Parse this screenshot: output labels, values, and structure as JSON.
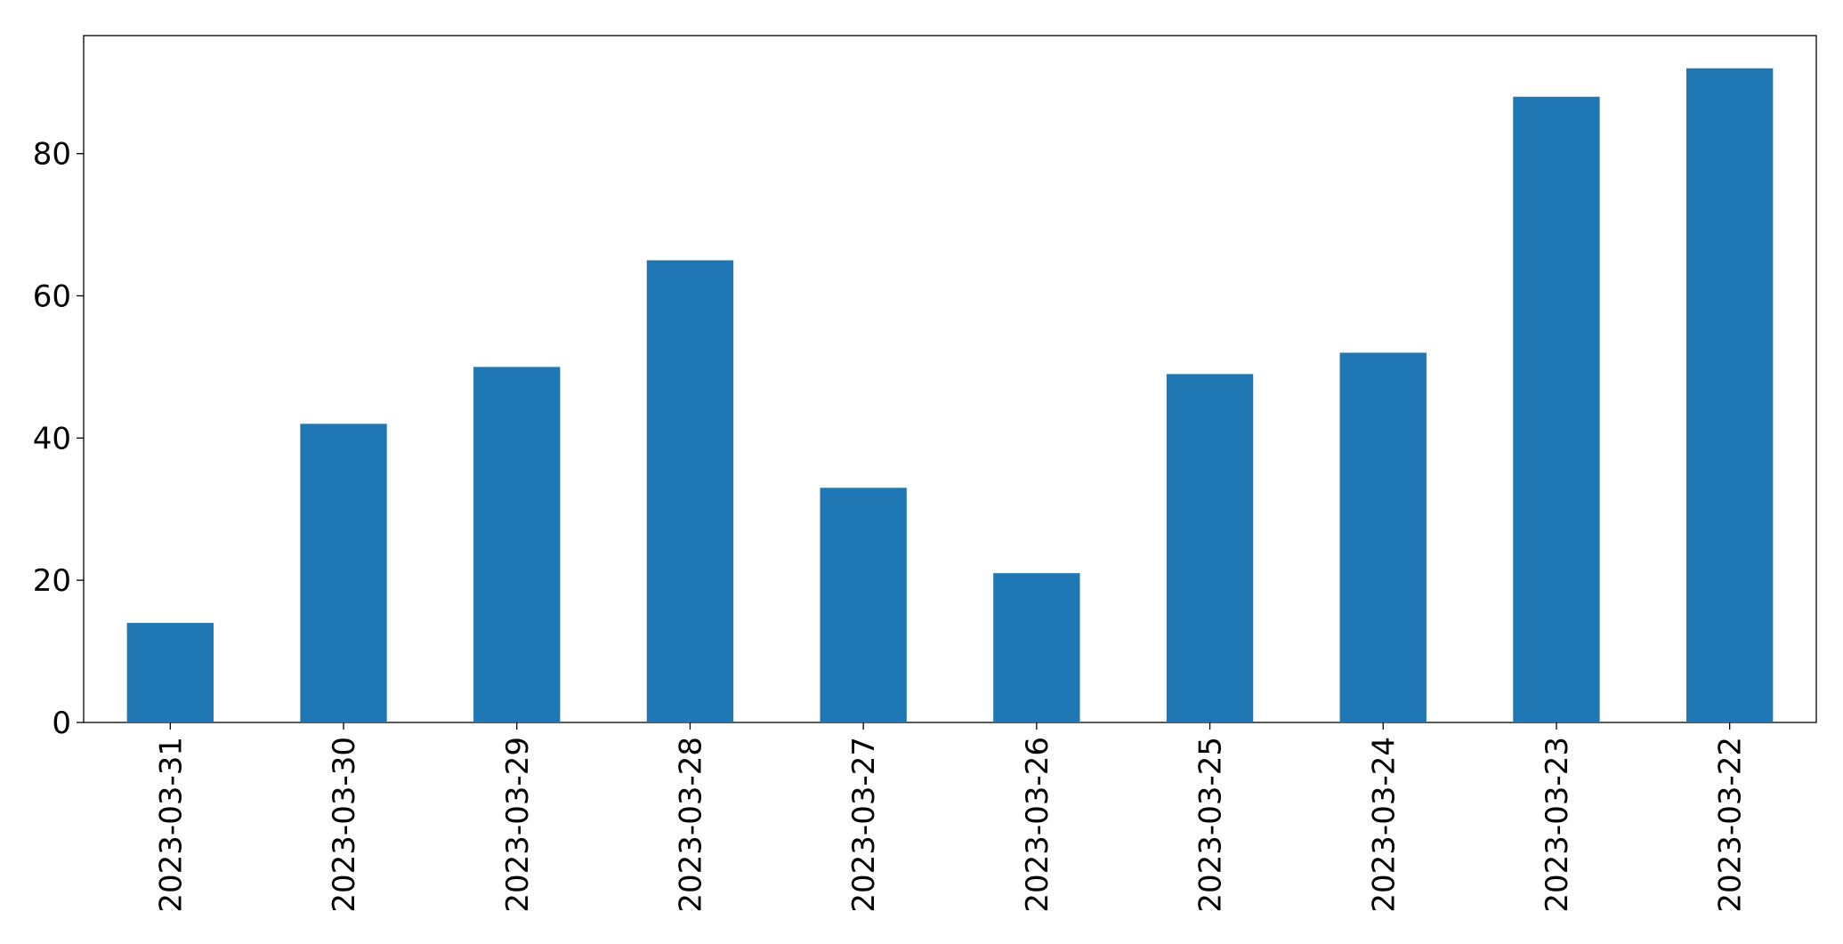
{
  "chart_data": {
    "type": "bar",
    "categories": [
      "2023-03-31",
      "2023-03-30",
      "2023-03-29",
      "2023-03-28",
      "2023-03-27",
      "2023-03-26",
      "2023-03-25",
      "2023-03-24",
      "2023-03-23",
      "2023-03-22"
    ],
    "values": [
      14,
      42,
      50,
      65,
      33,
      21,
      49,
      52,
      88,
      92
    ],
    "color": "#1f77b4",
    "ylim": [
      0,
      96.6
    ],
    "yticks": [
      0,
      20,
      40,
      60,
      80
    ],
    "grid": false
  }
}
